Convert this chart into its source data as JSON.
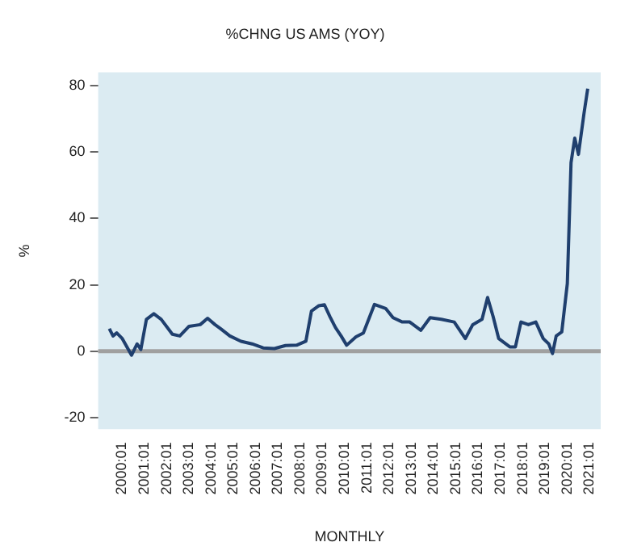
{
  "chart_data": {
    "type": "line",
    "title": "%CHNG US AMS (YOY)",
    "xlabel": "MONTHLY",
    "ylabel": "%",
    "x": [
      "1999-06",
      "1999-08",
      "1999-10",
      "2000-01",
      "2000-06",
      "2000-09",
      "2000-11",
      "2001-02",
      "2001-06",
      "2001-10",
      "2002-04",
      "2002-08",
      "2003-01",
      "2003-07",
      "2003-11",
      "2004-03",
      "2004-06",
      "2004-11",
      "2005-05",
      "2005-11",
      "2006-05",
      "2006-11",
      "2007-05",
      "2007-11",
      "2008-04",
      "2008-07",
      "2008-11",
      "2009-02",
      "2009-05",
      "2009-08",
      "2009-11",
      "2010-02",
      "2010-07",
      "2010-11",
      "2011-05",
      "2011-11",
      "2012-03",
      "2012-08",
      "2012-12",
      "2013-06",
      "2013-11",
      "2014-05",
      "2014-12",
      "2015-06",
      "2015-10",
      "2016-03",
      "2016-06",
      "2016-09",
      "2016-12",
      "2017-06",
      "2017-09",
      "2017-12",
      "2018-04",
      "2018-08",
      "2018-12",
      "2019-03",
      "2019-05",
      "2019-07",
      "2019-10",
      "2020-01",
      "2020-03",
      "2020-05",
      "2020-07",
      "2020-10",
      "2020-12"
    ],
    "series": [
      {
        "color": "#1f3f6e",
        "values": [
          6.8,
          4.6,
          5.5,
          3.8,
          -1.2,
          2.2,
          0.5,
          9.6,
          11.3,
          9.6,
          5.1,
          4.6,
          7.5,
          8.0,
          9.9,
          8.0,
          6.8,
          4.6,
          3.0,
          2.2,
          1.0,
          0.8,
          1.7,
          1.8,
          3.0,
          12.1,
          13.7,
          14.0,
          10.4,
          7.1,
          4.6,
          1.8,
          4.3,
          5.5,
          14.1,
          12.9,
          10.1,
          8.8,
          8.8,
          6.3,
          10.1,
          9.6,
          8.8,
          3.8,
          8.0,
          9.6,
          16.2,
          10.4,
          3.8,
          1.3,
          1.3,
          8.8,
          8.0,
          8.8,
          3.8,
          2.2,
          -0.7,
          4.6,
          5.8,
          20.4,
          56.8,
          64.2,
          59.3,
          71.7,
          79.1
        ]
      }
    ],
    "xlim": [
      "1998-12",
      "2021-07"
    ],
    "xticks": [
      {
        "value": "2000-01",
        "label": "2000:01"
      },
      {
        "value": "2001-01",
        "label": "2001:01"
      },
      {
        "value": "2002-01",
        "label": "2002:01"
      },
      {
        "value": "2003-01",
        "label": "2003:01"
      },
      {
        "value": "2004-01",
        "label": "2004:01"
      },
      {
        "value": "2005-01",
        "label": "2005:01"
      },
      {
        "value": "2006-01",
        "label": "2006:01"
      },
      {
        "value": "2007-01",
        "label": "2007:01"
      },
      {
        "value": "2008-01",
        "label": "2008:01"
      },
      {
        "value": "2009-01",
        "label": "2009:01"
      },
      {
        "value": "2010-01",
        "label": "2010:01"
      },
      {
        "value": "2011-01",
        "label": "2011:01"
      },
      {
        "value": "2012-01",
        "label": "2012:01"
      },
      {
        "value": "2013-01",
        "label": "2013:01"
      },
      {
        "value": "2014-01",
        "label": "2014:01"
      },
      {
        "value": "2015-01",
        "label": "2015:01"
      },
      {
        "value": "2016-01",
        "label": "2016:01"
      },
      {
        "value": "2017-01",
        "label": "2017:01"
      },
      {
        "value": "2018-01",
        "label": "2018:01"
      },
      {
        "value": "2019-01",
        "label": "2019:01"
      },
      {
        "value": "2020-01",
        "label": "2020:01"
      },
      {
        "value": "2021-01",
        "label": "2021:01"
      }
    ],
    "ylim": [
      -23.5,
      84
    ],
    "yticks": [
      -20,
      0,
      20,
      40,
      60,
      80
    ],
    "ref_lines": [
      {
        "axis": "y",
        "value": 0,
        "color": "#a0a0a0"
      }
    ],
    "grid": false,
    "legend": false,
    "marker": "none",
    "line_style": "solid"
  }
}
